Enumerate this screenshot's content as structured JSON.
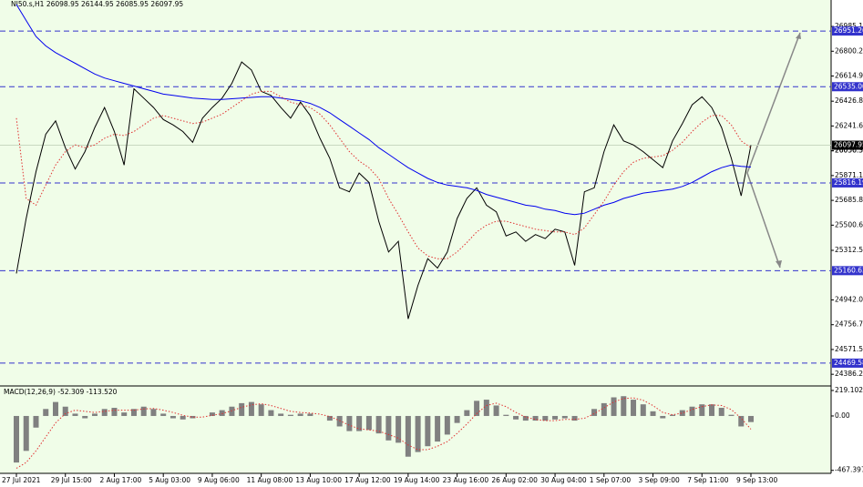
{
  "chart_data": [
    {
      "type": "line",
      "title": "NI50.s,H1  26098.95 26144.95 26085.95 26097.95",
      "ylim": [
        24299,
        27183
      ],
      "yticks": [
        {
          "value": 26985.1,
          "label": "26985.10"
        },
        {
          "value": 26800.2,
          "label": "26800.20"
        },
        26614.95,
        {
          "value": 26426.8,
          "label": "26426.80"
        },
        26241.65,
        26056.35,
        {
          "value": 25871.1,
          "label": "25871.10"
        },
        25685.85,
        {
          "value": 25500.6,
          "label": "25500.60"
        },
        {
          "value": 25312.5,
          "label": "25312.50"
        },
        {
          "value": 24942,
          "label": "24942.00"
        },
        26056.35,
        24756.75,
        {
          "value": 24571.5,
          "label": "24571.50"
        },
        24386.25
      ],
      "levels": [
        26951.26,
        {
          "value": 26535,
          "label": "26535.00"
        },
        25816.19,
        25160.63,
        24469.58
      ],
      "level_color": "#3333cc",
      "last_price": 26097.95,
      "series": [
        {
          "color": "#000000",
          "dashed": false,
          "values": [
            25140,
            25550,
            25900,
            26180,
            26280,
            26080,
            25920,
            26050,
            26230,
            26380,
            26200,
            25950,
            26520,
            26450,
            26380,
            26290,
            26250,
            26200,
            26120,
            26300,
            26380,
            26450,
            26560,
            26720,
            26660,
            26500,
            26470,
            26380,
            26300,
            26420,
            26320,
            26150,
            26000,
            25780,
            25750,
            25890,
            25820,
            25530,
            25300,
            25380,
            24800,
            25050,
            25250,
            25180,
            25300,
            25550,
            25700,
            25780,
            25650,
            25600,
            25420,
            25450,
            25380,
            25430,
            25400,
            25470,
            25450,
            25200,
            25750,
            25780,
            26050,
            26250,
            26130,
            26100,
            26050,
            25990,
            25930,
            26130,
            26260,
            26400,
            26460,
            26380,
            26230,
            26000,
            25720,
            26097.95
          ]
        },
        {
          "color": "#0000ee",
          "dashed": false,
          "values": [
            27150,
            27030,
            26910,
            26840,
            26790,
            26750,
            26710,
            26670,
            26630,
            26600,
            26580,
            26560,
            26540,
            26520,
            26500,
            26480,
            26470,
            26460,
            26450,
            26445,
            26440,
            26440,
            26445,
            26450,
            26455,
            26460,
            26460,
            26450,
            26440,
            26430,
            26410,
            26380,
            26340,
            26290,
            26240,
            26190,
            26140,
            26080,
            26030,
            25980,
            25930,
            25890,
            25850,
            25820,
            25800,
            25790,
            25780,
            25760,
            25730,
            25710,
            25690,
            25670,
            25650,
            25640,
            25620,
            25610,
            25590,
            25580,
            25590,
            25620,
            25650,
            25670,
            25700,
            25720,
            25740,
            25750,
            25760,
            25770,
            25790,
            25820,
            25860,
            25900,
            25930,
            25950,
            25940,
            25935
          ]
        },
        {
          "color": "#e03030",
          "dashed": true,
          "values": [
            26300,
            25700,
            25650,
            25800,
            25950,
            26050,
            26100,
            26080,
            26100,
            26150,
            26180,
            26170,
            26200,
            26250,
            26300,
            26320,
            26300,
            26280,
            26260,
            26270,
            26300,
            26330,
            26380,
            26430,
            26480,
            26500,
            26500,
            26460,
            26420,
            26400,
            26380,
            26330,
            26250,
            26150,
            26050,
            25980,
            25930,
            25850,
            25700,
            25580,
            25450,
            25330,
            25270,
            25250,
            25250,
            25300,
            25370,
            25450,
            25500,
            25530,
            25530,
            25510,
            25490,
            25470,
            25460,
            25450,
            25450,
            25430,
            25480,
            25580,
            25680,
            25800,
            25900,
            25970,
            26000,
            26010,
            26020,
            26060,
            26120,
            26200,
            26270,
            26320,
            26320,
            26250,
            26130,
            26080
          ]
        }
      ]
    },
    {
      "type": "bar",
      "title": "MACD(12,26,9) -52.309 -113.520",
      "ylim": [
        -493,
        250
      ],
      "yticks": [
        219.102,
        {
          "value": 0,
          "label": "0.00"
        },
        -467.397
      ],
      "categories": [
        "27 Jul 2021",
        null,
        null,
        null,
        null,
        "29 Jul 15:00",
        null,
        null,
        null,
        null,
        "2 Aug 17:00",
        null,
        null,
        null,
        null,
        "5 Aug 03:00",
        null,
        null,
        null,
        null,
        "9 Aug 06:00",
        null,
        null,
        null,
        null,
        "11 Aug 08:00",
        null,
        null,
        null,
        null,
        "13 Aug 10:00",
        null,
        null,
        null,
        null,
        "17 Aug 12:00",
        null,
        null,
        null,
        null,
        "19 Aug 14:00",
        null,
        null,
        null,
        null,
        "23 Aug 16:00",
        null,
        null,
        null,
        null,
        "26 Aug 02:00",
        null,
        null,
        null,
        null,
        "30 Aug 04:00",
        null,
        null,
        null,
        null,
        "1 Sep 07:00",
        null,
        null,
        null,
        null,
        "3 Sep 09:00",
        null,
        null,
        null,
        null,
        "7 Sep 11:00",
        null,
        null,
        null,
        null,
        "9 Sep 13:00"
      ],
      "series": [
        {
          "type": "bar",
          "color": "#808080",
          "values": [
            -400,
            -300,
            -100,
            60,
            120,
            80,
            20,
            -20,
            20,
            60,
            70,
            30,
            60,
            80,
            60,
            20,
            -20,
            -30,
            -20,
            0,
            30,
            50,
            80,
            110,
            120,
            100,
            50,
            20,
            10,
            20,
            20,
            0,
            -40,
            -90,
            -130,
            -130,
            -120,
            -150,
            -210,
            -230,
            -350,
            -310,
            -260,
            -220,
            -160,
            -60,
            50,
            130,
            140,
            90,
            10,
            -30,
            -40,
            -40,
            -40,
            -30,
            -20,
            -40,
            0,
            60,
            110,
            160,
            170,
            140,
            100,
            40,
            -20,
            10,
            50,
            80,
            100,
            100,
            70,
            10,
            -90,
            -52.309
          ]
        },
        {
          "type": "line",
          "color": "#e03030",
          "dashed": true,
          "values": [
            -450,
            -400,
            -300,
            -180,
            -60,
            20,
            50,
            40,
            30,
            40,
            50,
            50,
            50,
            60,
            65,
            50,
            30,
            5,
            -10,
            -10,
            5,
            20,
            45,
            75,
            95,
            105,
            90,
            65,
            40,
            30,
            25,
            15,
            -5,
            -40,
            -80,
            -110,
            -120,
            -130,
            -160,
            -190,
            -250,
            -290,
            -290,
            -260,
            -220,
            -150,
            -70,
            20,
            90,
            110,
            80,
            30,
            -10,
            -30,
            -40,
            -40,
            -30,
            -30,
            -20,
            20,
            70,
            120,
            150,
            155,
            135,
            90,
            30,
            10,
            25,
            55,
            80,
            95,
            90,
            55,
            -20,
            -113.52
          ]
        }
      ]
    }
  ]
}
